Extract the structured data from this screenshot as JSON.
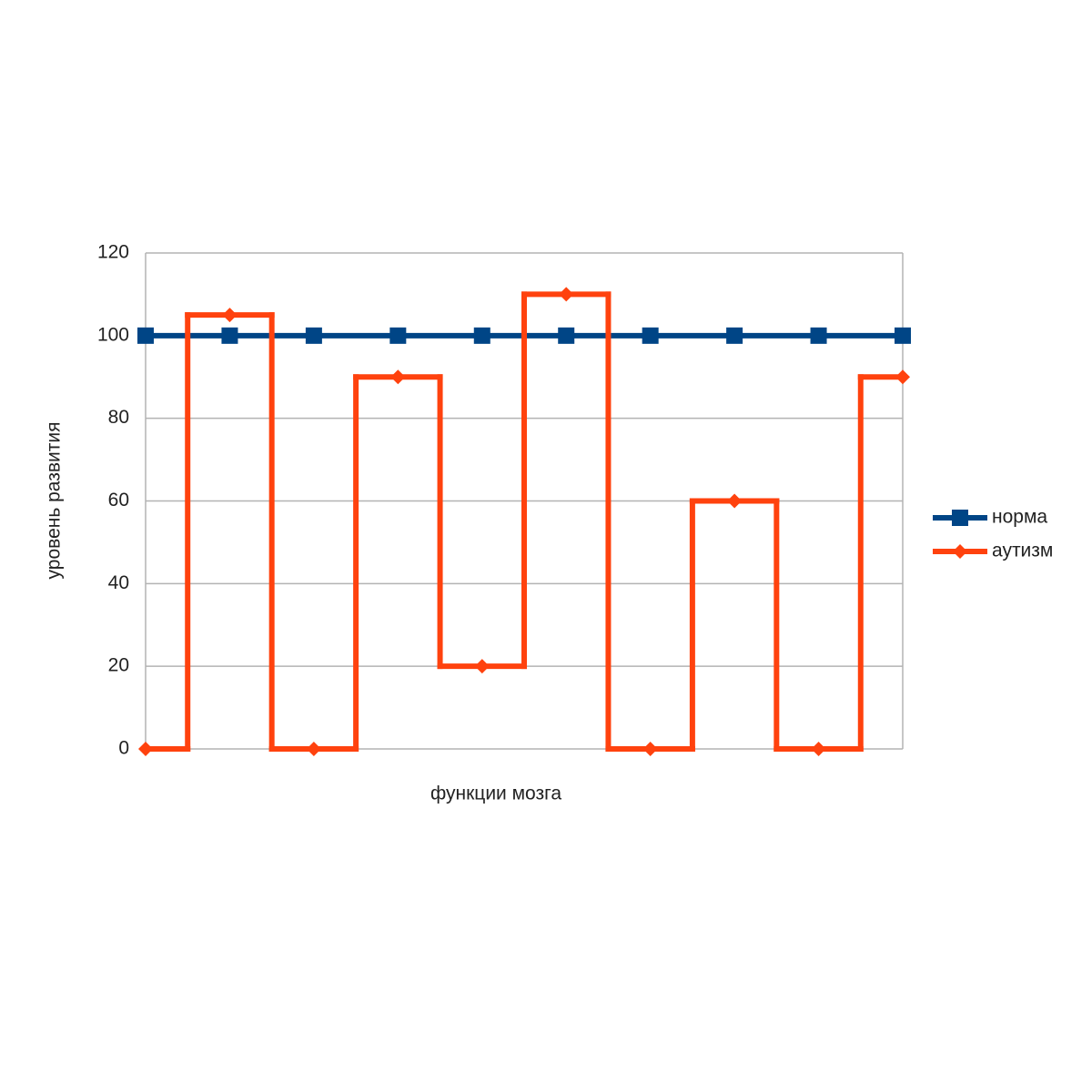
{
  "chart_data": {
    "type": "line",
    "x_label": "функции мозга",
    "y_label": "уровень развития",
    "categories": [
      null,
      null,
      null,
      null,
      null,
      null,
      null,
      null,
      null,
      null
    ],
    "series": [
      {
        "name": "норма",
        "color": "#004586",
        "marker": "square",
        "values": [
          100,
          100,
          100,
          100,
          100,
          100,
          100,
          100,
          100,
          100
        ]
      },
      {
        "name": "аутизм",
        "color": "#ff420e",
        "marker": "diamond",
        "step": "mid",
        "values": [
          0,
          105,
          0,
          90,
          20,
          110,
          0,
          60,
          0,
          90
        ]
      }
    ],
    "ylim": [
      0,
      120
    ],
    "yticks": [
      0,
      20,
      40,
      60,
      80,
      100,
      120
    ],
    "grid": true,
    "legend": "right"
  }
}
